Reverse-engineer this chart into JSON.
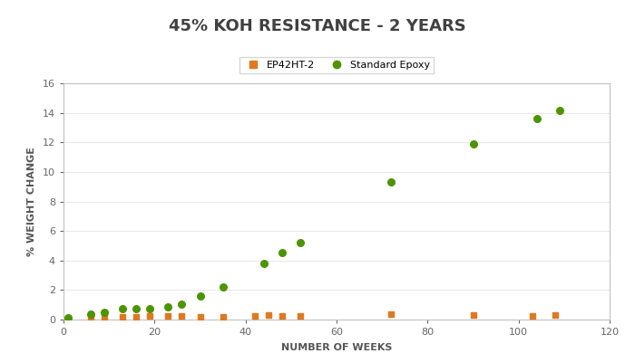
{
  "title": "45% KOH RESISTANCE - 2 YEARS",
  "xlabel": "NUMBER OF WEEKS",
  "ylabel": "% WEIGHT CHANGE",
  "ep42ht2_x": [
    1,
    6,
    9,
    13,
    16,
    19,
    23,
    26,
    30,
    35,
    42,
    45,
    48,
    52,
    72,
    90,
    103,
    108
  ],
  "ep42ht2_y": [
    0.05,
    0.15,
    0.2,
    0.2,
    0.2,
    0.25,
    0.25,
    0.25,
    0.2,
    0.2,
    0.25,
    0.3,
    0.25,
    0.25,
    0.35,
    0.3,
    0.25,
    0.3
  ],
  "standard_x": [
    1,
    6,
    9,
    13,
    16,
    19,
    23,
    26,
    30,
    35,
    44,
    48,
    52,
    72,
    90,
    104,
    109
  ],
  "standard_y": [
    0.1,
    0.35,
    0.5,
    0.7,
    0.75,
    0.75,
    0.85,
    1.05,
    1.6,
    2.2,
    3.8,
    4.55,
    5.2,
    9.35,
    11.9,
    13.6,
    14.15
  ],
  "ep42ht2_color": "#E07820",
  "standard_color": "#4C9400",
  "ylim": [
    0,
    16
  ],
  "xlim": [
    0,
    120
  ],
  "yticks": [
    0,
    2,
    4,
    6,
    8,
    10,
    12,
    14,
    16
  ],
  "xticks": [
    0,
    20,
    40,
    60,
    80,
    100,
    120
  ],
  "title_fontsize": 13,
  "axis_label_fontsize": 8,
  "tick_fontsize": 8,
  "legend_fontsize": 8,
  "background_color": "#ffffff"
}
